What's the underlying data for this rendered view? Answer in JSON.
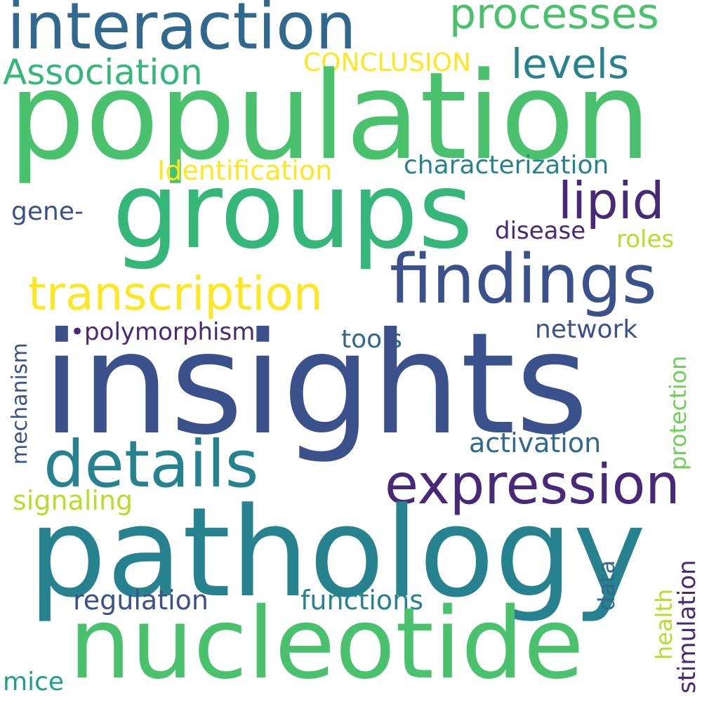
{
  "words": {
    "population": "population",
    "insights": "insights",
    "pathology": "pathology",
    "groups": "groups",
    "nucleotide": "nucleotide",
    "interaction": "interaction",
    "findings": "findings",
    "details": "details",
    "expression": "expression",
    "transcription": "transcription",
    "lipid": "lipid",
    "processes": "processes",
    "levels": "levels",
    "association": "Association",
    "conclusion": "CONCLUSION",
    "identification": "Identification",
    "characterization": "characterization",
    "gene": "gene-",
    "disease": "disease",
    "roles": "roles",
    "polymorphism": "•polymorphism•",
    "network": "network",
    "tools": "tools",
    "mechanism": "mechanism",
    "protection": "protection",
    "activation": "activation",
    "signaling": "signaling",
    "stimulation": "stimulation",
    "data": "data",
    "health": "health",
    "regulation": "regulation",
    "functions": "functions",
    "mice": "mice"
  },
  "colors": {
    "navy": "#3b518b",
    "indigo": "#482878",
    "dark_blue": "#31688e",
    "teal": "#26828e",
    "teal_green": "#1f9e89",
    "green": "#35b779",
    "light_green": "#4ac16d",
    "lime": "#6ece58",
    "yellow_lime": "#b5de2b",
    "yellow": "#fde725"
  }
}
